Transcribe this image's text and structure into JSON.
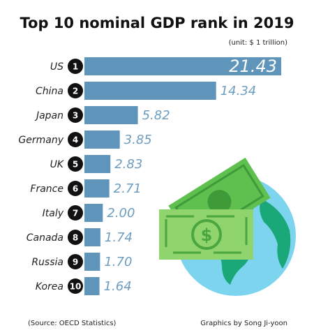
{
  "chart_data": {
    "type": "bar",
    "orientation": "horizontal",
    "title": "Top 10 nominal GDP rank in 2019",
    "subtitle": "(unit: $ 1 trillion)",
    "source": "(Source: OECD Statistics)",
    "credit": "Graphics by Song Ji-yoon",
    "categories": [
      "US",
      "China",
      "Japan",
      "Germany",
      "UK",
      "France",
      "Italy",
      "Canada",
      "Russia",
      "Korea"
    ],
    "ranks": [
      1,
      2,
      3,
      4,
      5,
      6,
      7,
      8,
      9,
      10
    ],
    "values": [
      21.43,
      14.34,
      5.82,
      3.85,
      2.83,
      2.71,
      2.0,
      1.74,
      1.7,
      1.64
    ],
    "value_labels": [
      "21.43",
      "14.34",
      "5.82",
      "3.85",
      "2.83",
      "2.71",
      "2.00",
      "1.74",
      "1.70",
      "1.64"
    ],
    "color": "#5f95bb"
  }
}
